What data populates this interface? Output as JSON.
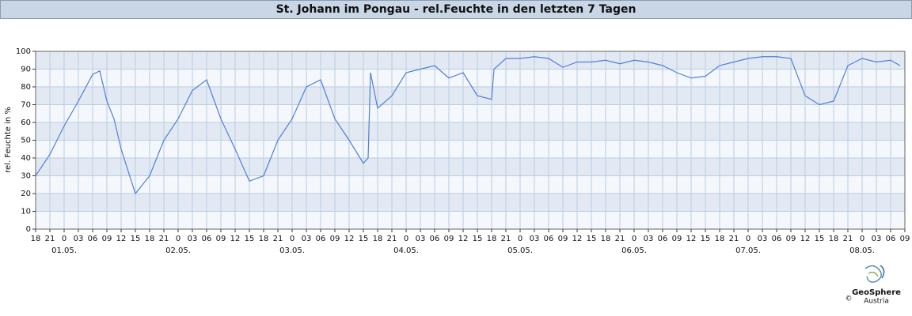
{
  "chart_data": {
    "type": "line",
    "title": "St. Johann im Pongau - rel.Feuchte in den letzten 7 Tagen",
    "y_label": "rel. Feuchte in %",
    "logo": [
      "GeoSphere",
      "Austria",
      "©"
    ],
    "series": [
      {
        "name": "rel. Feuchte",
        "color": "#4f7fd9",
        "x": [
          0,
          3,
          6,
          9,
          12,
          13.5,
          15,
          16.5,
          18,
          21,
          24,
          27,
          30,
          33,
          36,
          39,
          42,
          45,
          48,
          51,
          54,
          57,
          60,
          63,
          66,
          69,
          70,
          70.5,
          72,
          75,
          78,
          81,
          84,
          87,
          90,
          93,
          96,
          96.5,
          99,
          102,
          105,
          108,
          111,
          114,
          117,
          120,
          123,
          126,
          129,
          132,
          135,
          138,
          141,
          144,
          147,
          150,
          153,
          156,
          159,
          162,
          165,
          168,
          171,
          174,
          177,
          180,
          182
        ],
        "values": [
          30,
          42,
          58,
          72,
          87,
          89,
          72,
          62,
          45,
          20,
          30,
          50,
          62,
          78,
          84,
          62,
          45,
          27,
          30,
          50,
          62,
          80,
          84,
          62,
          50,
          37,
          40,
          88,
          68,
          75,
          88,
          90,
          92,
          85,
          88,
          75,
          73,
          90,
          96,
          96,
          97,
          96,
          91,
          94,
          94,
          95,
          93,
          95,
          94,
          92,
          88,
          85,
          86,
          92,
          94,
          96,
          97,
          97,
          96,
          75,
          70,
          72,
          92,
          96,
          94,
          95,
          92
        ]
      }
    ],
    "xlim": [
      0,
      183
    ],
    "ylim": [
      0,
      100
    ],
    "yticks": [
      0,
      10,
      20,
      30,
      40,
      50,
      60,
      70,
      80,
      90,
      100
    ],
    "xticks": [
      {
        "value": 0,
        "label": "18"
      },
      {
        "value": 3,
        "label": "21"
      },
      {
        "value": 6,
        "label": "0"
      },
      {
        "value": 9,
        "label": "03"
      },
      {
        "value": 12,
        "label": "06"
      },
      {
        "value": 15,
        "label": "09"
      },
      {
        "value": 18,
        "label": "12"
      },
      {
        "value": 21,
        "label": "15"
      },
      {
        "value": 24,
        "label": "18"
      },
      {
        "value": 27,
        "label": "21"
      },
      {
        "value": 30,
        "label": "0"
      },
      {
        "value": 33,
        "label": "03"
      },
      {
        "value": 36,
        "label": "06"
      },
      {
        "value": 39,
        "label": "09"
      },
      {
        "value": 42,
        "label": "12"
      },
      {
        "value": 45,
        "label": "15"
      },
      {
        "value": 48,
        "label": "18"
      },
      {
        "value": 51,
        "label": "21"
      },
      {
        "value": 54,
        "label": "0"
      },
      {
        "value": 57,
        "label": "03"
      },
      {
        "value": 60,
        "label": "06"
      },
      {
        "value": 63,
        "label": "09"
      },
      {
        "value": 66,
        "label": "12"
      },
      {
        "value": 69,
        "label": "15"
      },
      {
        "value": 72,
        "label": "18"
      },
      {
        "value": 75,
        "label": "21"
      },
      {
        "value": 78,
        "label": "0"
      },
      {
        "value": 81,
        "label": "03"
      },
      {
        "value": 84,
        "label": "06"
      },
      {
        "value": 87,
        "label": "09"
      },
      {
        "value": 90,
        "label": "12"
      },
      {
        "value": 93,
        "label": "15"
      },
      {
        "value": 96,
        "label": "18"
      },
      {
        "value": 99,
        "label": "21"
      },
      {
        "value": 102,
        "label": "0"
      },
      {
        "value": 105,
        "label": "03"
      },
      {
        "value": 108,
        "label": "06"
      },
      {
        "value": 111,
        "label": "09"
      },
      {
        "value": 114,
        "label": "12"
      },
      {
        "value": 117,
        "label": "15"
      },
      {
        "value": 120,
        "label": "18"
      },
      {
        "value": 123,
        "label": "21"
      },
      {
        "value": 126,
        "label": "0"
      },
      {
        "value": 129,
        "label": "03"
      },
      {
        "value": 132,
        "label": "06"
      },
      {
        "value": 135,
        "label": "09"
      },
      {
        "value": 138,
        "label": "12"
      },
      {
        "value": 141,
        "label": "15"
      },
      {
        "value": 144,
        "label": "18"
      },
      {
        "value": 147,
        "label": "21"
      },
      {
        "value": 150,
        "label": "0"
      },
      {
        "value": 153,
        "label": "03"
      },
      {
        "value": 156,
        "label": "06"
      },
      {
        "value": 159,
        "label": "09"
      },
      {
        "value": 162,
        "label": "12"
      },
      {
        "value": 165,
        "label": "15"
      },
      {
        "value": 168,
        "label": "18"
      },
      {
        "value": 171,
        "label": "21"
      },
      {
        "value": 174,
        "label": "0"
      },
      {
        "value": 177,
        "label": "03"
      },
      {
        "value": 180,
        "label": "06"
      },
      {
        "value": 183,
        "label": "09"
      }
    ],
    "date_labels": [
      {
        "value": 6,
        "label": "01.05."
      },
      {
        "value": 30,
        "label": "02.05."
      },
      {
        "value": 54,
        "label": "03.05."
      },
      {
        "value": 78,
        "label": "04.05."
      },
      {
        "value": 102,
        "label": "05.05."
      },
      {
        "value": 126,
        "label": "06.05."
      },
      {
        "value": 150,
        "label": "07.05."
      },
      {
        "value": 174,
        "label": "08.05."
      }
    ],
    "grid": true
  }
}
